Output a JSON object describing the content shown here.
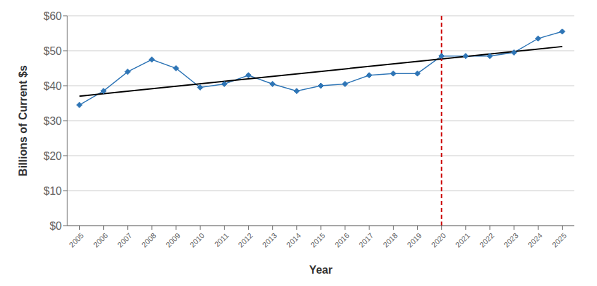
{
  "chart_data": {
    "type": "line",
    "x": [
      2005,
      2006,
      2007,
      2008,
      2009,
      2010,
      2011,
      2012,
      2013,
      2014,
      2015,
      2016,
      2017,
      2018,
      2019,
      2020,
      2021,
      2022,
      2023,
      2024,
      2025
    ],
    "series": [
      {
        "values": [
          34.5,
          38.5,
          44.0,
          47.5,
          45.0,
          39.5,
          40.5,
          43.0,
          40.5,
          38.5,
          40.0,
          40.5,
          43.0,
          43.5,
          43.5,
          48.5,
          48.5,
          48.5,
          49.5,
          53.5,
          55.5
        ],
        "color": "#2E75B6",
        "marker": "diamond"
      },
      {
        "x": [
          2005,
          2025
        ],
        "values": [
          37.0,
          51.2
        ],
        "color": "#000000"
      }
    ],
    "vlines": [
      {
        "x": 2020,
        "color": "#CC0000",
        "line_style": "dashed"
      }
    ],
    "xlabel": "Year",
    "ylabel": "Billions of Current $s",
    "xlim": [
      2004.5,
      2025.5
    ],
    "xticks": [
      2005,
      2006,
      2007,
      2008,
      2009,
      2010,
      2011,
      2012,
      2013,
      2014,
      2015,
      2016,
      2017,
      2018,
      2019,
      2020,
      2021,
      2022,
      2023,
      2024,
      2025
    ],
    "ylim": [
      0,
      60
    ],
    "yticks": [
      {
        "value": 0,
        "label": "$0"
      },
      {
        "value": 10,
        "label": "$10"
      },
      {
        "value": 20,
        "label": "$20"
      },
      {
        "value": 30,
        "label": "$30"
      },
      {
        "value": 40,
        "label": "$40"
      },
      {
        "value": 50,
        "label": "$50"
      },
      {
        "value": 60,
        "label": "$60"
      }
    ],
    "grid": "y"
  }
}
